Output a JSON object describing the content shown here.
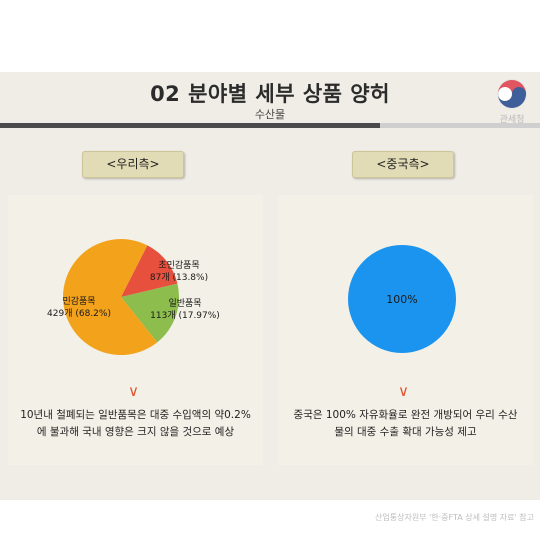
{
  "header": {
    "title": "02 분야별 세부 상품 양허",
    "subtitle": "수산물",
    "logo_text": "관세청"
  },
  "left": {
    "label": "<우리측>",
    "chevron": "∨",
    "description_line1": "10년내 철폐되는 일반품목은 대중 수입액의 약0.2%",
    "description_line2": "에 불과해 국내 영향은 크지 않을 것으로 예상"
  },
  "right": {
    "label": "<중국측>",
    "chevron": "∨",
    "description_line1": "중국은 100% 자유화율로 완전 개방되어 우리 수산",
    "description_line2": "물의 대중 수출 확대 가능성 제고"
  },
  "source": "산업통상자원부 '한·중FTA 상세 설명 자료' 참고",
  "chart_data": [
    {
      "type": "pie",
      "slices": [
        {
          "name": "초민감품목",
          "count_label": "87개 (13.8%)",
          "value": 13.8,
          "color": "#e6503c"
        },
        {
          "name": "일반품목",
          "count_label": "113개 (17.97%)",
          "value": 17.97,
          "color": "#8dbd4c"
        },
        {
          "name": "민감품목",
          "count_label": "429개 (68.2%)",
          "value": 68.2,
          "color": "#f3a21b"
        }
      ]
    },
    {
      "type": "pie",
      "slices": [
        {
          "name": "",
          "count_label": "100%",
          "value": 100,
          "color": "#1a94ef"
        }
      ]
    }
  ]
}
